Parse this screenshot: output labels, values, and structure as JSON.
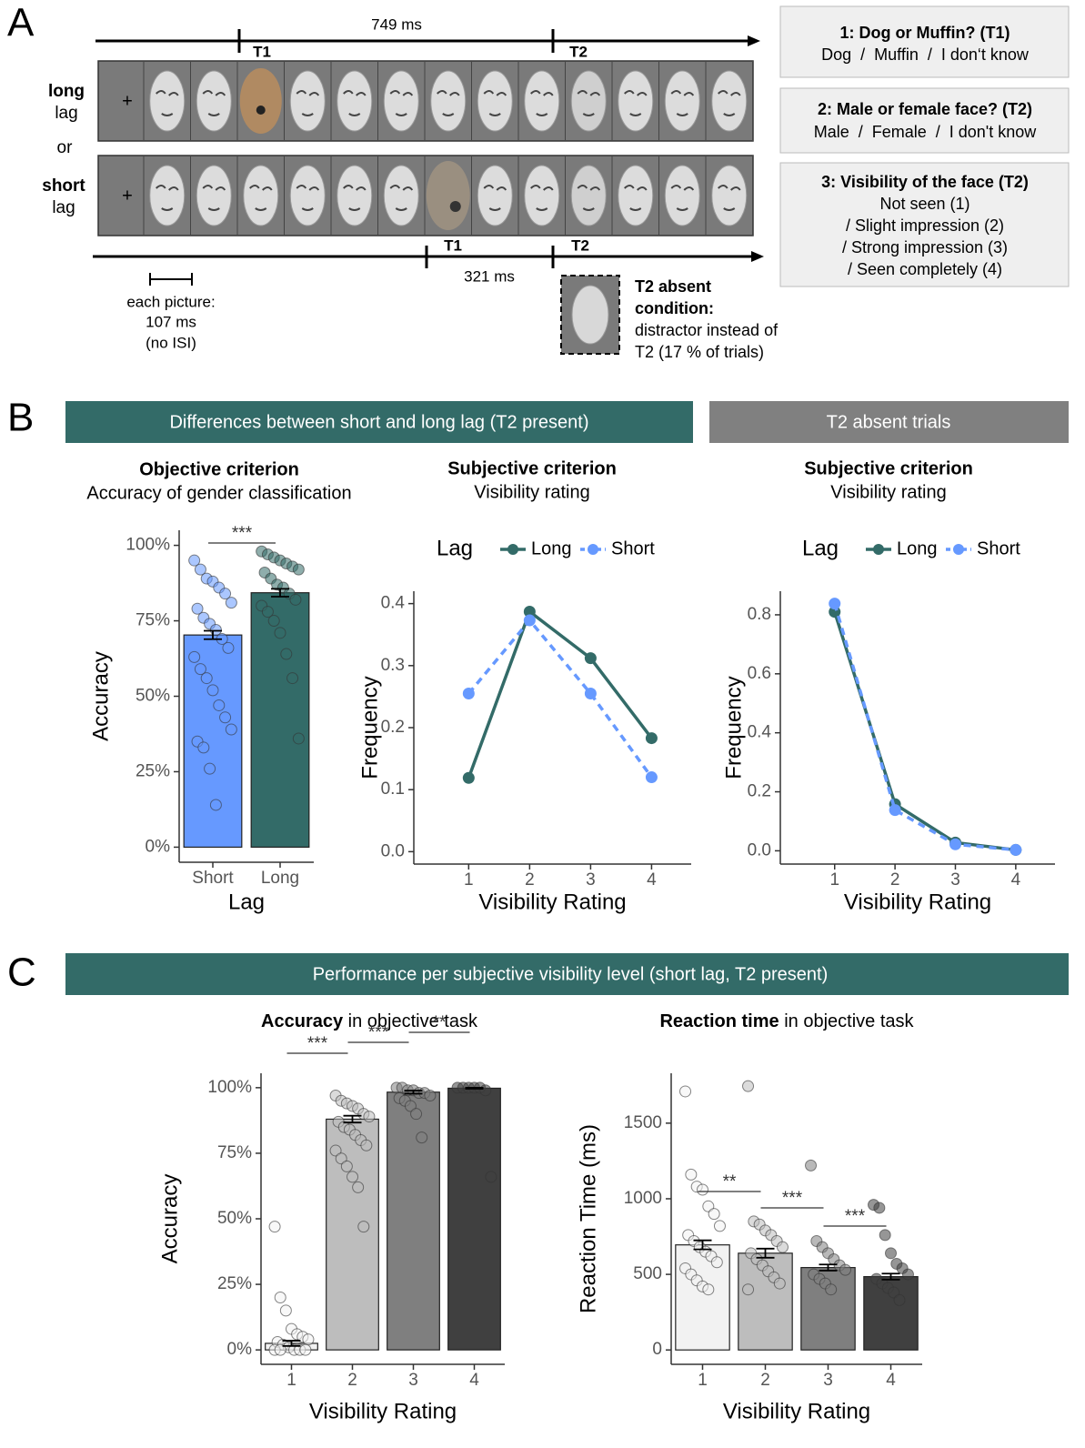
{
  "panel_labels": [
    "A",
    "B",
    "C"
  ],
  "panel_a": {
    "long_label": [
      "long",
      "lag"
    ],
    "or": "or",
    "short_label": [
      "short",
      "lag"
    ],
    "fixation": "+",
    "long_timeline": {
      "duration": "749 ms",
      "t1": "T1",
      "t2": "T2"
    },
    "short_timeline": {
      "duration": "321 ms",
      "t1": "T1",
      "t2": "T2"
    },
    "picture_note": [
      "each picture:",
      "107 ms",
      "(no ISI)"
    ],
    "absent_note": {
      "title": [
        "T2 absent",
        "condition:"
      ],
      "text": [
        "distractor instead of",
        "T2 (17 % of trials)"
      ]
    },
    "questions": [
      {
        "title": "1: Dog or Muffin? (T1)",
        "lines": [
          "Dog  /  Muffin  /  I don‘t know"
        ]
      },
      {
        "title": "2: Male or female face? (T2)",
        "lines": [
          "Male  /  Female  /  I don't know"
        ]
      },
      {
        "title": "3: Visibility of the face (T2)",
        "lines": [
          "Not seen (1)",
          "/ Slight impression (2)",
          "/ Strong impression (3)",
          "/ Seen completely (4)"
        ]
      }
    ]
  },
  "banners": {
    "b_left": "Differences between short and long lag (T2 present)",
    "b_right": "T2 absent trials",
    "c": "Performance per subjective visibility level (short lag, T2 present)"
  },
  "chart_data": [
    {
      "type": "bar",
      "title": "Objective criterion",
      "subtitle": "Accuracy of gender classification",
      "categories": [
        "Short",
        "Long"
      ],
      "values": [
        70.3,
        84.3
      ],
      "errors": [
        1.4,
        1.3
      ],
      "colors": [
        "#6699ff",
        "#336b68"
      ],
      "points": [
        [
          95,
          92,
          89,
          88,
          86,
          84,
          81,
          79,
          76,
          74,
          72,
          69,
          66,
          63,
          59,
          56,
          52,
          47,
          43,
          39,
          35,
          33,
          26,
          14
        ],
        [
          98,
          97,
          96,
          95,
          94,
          93,
          92,
          91,
          89,
          87,
          86,
          84,
          82,
          80,
          78,
          75,
          71,
          64,
          56,
          36
        ]
      ],
      "significance": [
        "***"
      ],
      "xlabel": "Lag",
      "ylabel": "Accuracy",
      "ylim": [
        -5,
        105
      ],
      "yticks": [
        {
          "value": 0,
          "label": "0%"
        },
        {
          "value": 25,
          "label": "25%"
        },
        {
          "value": 50,
          "label": "50%"
        },
        {
          "value": 75,
          "label": "75%"
        },
        {
          "value": 100,
          "label": "100%"
        }
      ]
    },
    {
      "type": "line",
      "title": "Subjective criterion",
      "subtitle": "Visibility rating",
      "legend_title": "Lag",
      "x": [
        1,
        2,
        3,
        4
      ],
      "series": [
        {
          "name": "Long",
          "color": "#336b68",
          "line_style": "solid",
          "values": [
            0.119,
            0.387,
            0.312,
            0.183
          ]
        },
        {
          "name": "Short",
          "color": "#6699ff",
          "line_style": "dashed",
          "values": [
            0.255,
            0.373,
            0.255,
            0.12
          ]
        }
      ],
      "xlabel": "Visibility Rating",
      "ylabel": "Frequency",
      "xlim": [
        0.1,
        4.65
      ],
      "ylim": [
        -0.02,
        0.42
      ],
      "xticks": [
        1,
        2,
        3,
        4
      ],
      "yticks": [
        {
          "value": 0,
          "label": "0.0"
        },
        0.1,
        0.2,
        0.3,
        0.4
      ]
    },
    {
      "type": "line",
      "title": "Subjective criterion",
      "subtitle": "Visibility rating",
      "legend_title": "Lag",
      "x": [
        1,
        2,
        3,
        4
      ],
      "series": [
        {
          "name": "Long",
          "color": "#336b68",
          "line_style": "solid",
          "values": [
            0.81,
            0.158,
            0.028,
            0.003
          ]
        },
        {
          "name": "Short",
          "color": "#6699ff",
          "line_style": "dashed",
          "values": [
            0.838,
            0.138,
            0.022,
            0.003
          ]
        }
      ],
      "xlabel": "Visibility Rating",
      "ylabel": "Frequency",
      "xlim": [
        0.1,
        4.65
      ],
      "ylim": [
        -0.045,
        0.88
      ],
      "xticks": [
        1,
        2,
        3,
        4
      ],
      "yticks": [
        {
          "value": 0,
          "label": "0.0"
        },
        0.2,
        0.4,
        0.6,
        0.8
      ]
    },
    {
      "type": "bar",
      "title": {
        "bold": "Accuracy",
        "text": " in objective task"
      },
      "categories": [
        "1",
        "2",
        "3",
        "4"
      ],
      "values": [
        2.5,
        88,
        98.3,
        99.8
      ],
      "errors": [
        1,
        1.3,
        0.6,
        0.2
      ],
      "colors": [
        "#f2f2f2",
        "#bdbdbd",
        "#7f7f7f",
        "#404040"
      ],
      "points": [
        [
          47,
          20,
          15,
          8,
          6,
          5,
          4,
          3,
          2,
          1,
          0,
          0,
          0,
          0,
          0
        ],
        [
          97,
          95,
          94,
          93,
          92,
          90,
          89,
          87,
          85,
          84,
          82,
          80,
          78,
          76,
          73,
          70,
          66,
          62,
          47
        ],
        [
          100,
          100,
          99,
          99,
          98,
          98,
          97,
          96,
          95,
          93,
          90,
          81
        ],
        [
          100,
          100,
          100,
          100,
          100,
          99,
          66
        ]
      ],
      "significance": [
        "***",
        "***",
        "**"
      ],
      "xlabel": "Visibility Rating",
      "ylabel": "Accuracy",
      "ylim": [
        -5.5,
        105.5
      ],
      "yticks": [
        {
          "value": 0,
          "label": "0%"
        },
        {
          "value": 25,
          "label": "25%"
        },
        {
          "value": 50,
          "label": "50%"
        },
        {
          "value": 75,
          "label": "75%"
        },
        {
          "value": 100,
          "label": "100%"
        }
      ]
    },
    {
      "type": "bar",
      "title": {
        "bold": "Reaction time",
        "text": " in objective task"
      },
      "categories": [
        "1",
        "2",
        "3",
        "4"
      ],
      "values": [
        695,
        640,
        545,
        485
      ],
      "errors": [
        30,
        30,
        20,
        20
      ],
      "colors": [
        "#f2f2f2",
        "#bdbdbd",
        "#7f7f7f",
        "#404040"
      ],
      "points": [
        [
          1710,
          1160,
          1080,
          1060,
          950,
          900,
          820,
          760,
          720,
          680,
          650,
          620,
          580,
          540,
          500,
          460,
          420,
          400
        ],
        [
          1745,
          850,
          830,
          790,
          760,
          720,
          680,
          640,
          600,
          560,
          520,
          480,
          440,
          400
        ],
        [
          1220,
          720,
          680,
          640,
          600,
          560,
          530,
          500,
          470,
          440,
          400
        ],
        [
          960,
          940,
          760,
          640,
          570,
          540,
          500,
          470,
          440,
          410,
          380,
          330
        ]
      ],
      "significance": [
        "**",
        "***",
        "***"
      ],
      "xlabel": "Visibility Rating",
      "ylabel": "Reaction Time (ms)",
      "ylim": [
        -95,
        1830
      ],
      "yticks": [
        0,
        500,
        1000,
        1500
      ]
    }
  ]
}
